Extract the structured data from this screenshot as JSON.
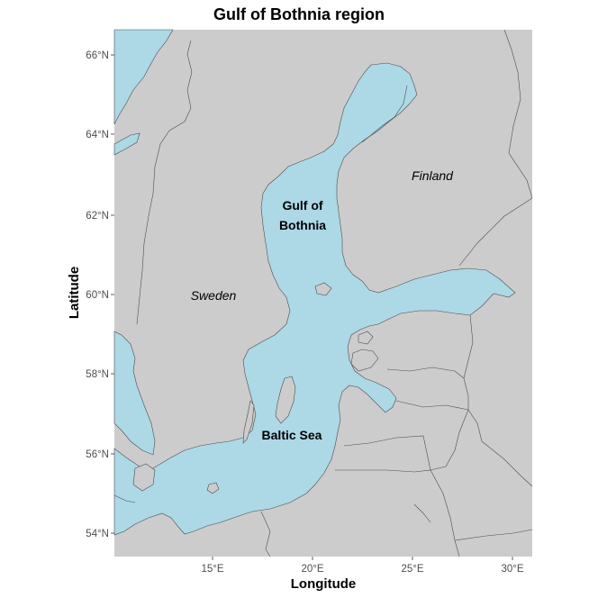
{
  "title": "Gulf of Bothnia region",
  "axes": {
    "x_title": "Longitude",
    "y_title": "Latitude",
    "x_ticks": [
      "15°E",
      "20°E",
      "25°E",
      "30°E"
    ],
    "y_ticks": [
      "66°N",
      "64°N",
      "62°N",
      "60°N",
      "58°N",
      "56°N",
      "54°N"
    ]
  },
  "labels": {
    "sweden": "Sweden",
    "finland": "Finland",
    "gulf_line1": "Gulf of",
    "gulf_line2": "Bothnia",
    "baltic": "Baltic Sea"
  },
  "colors": {
    "land": "#cccccc",
    "water": "#add8e6",
    "border": "#4d4d4d"
  }
}
